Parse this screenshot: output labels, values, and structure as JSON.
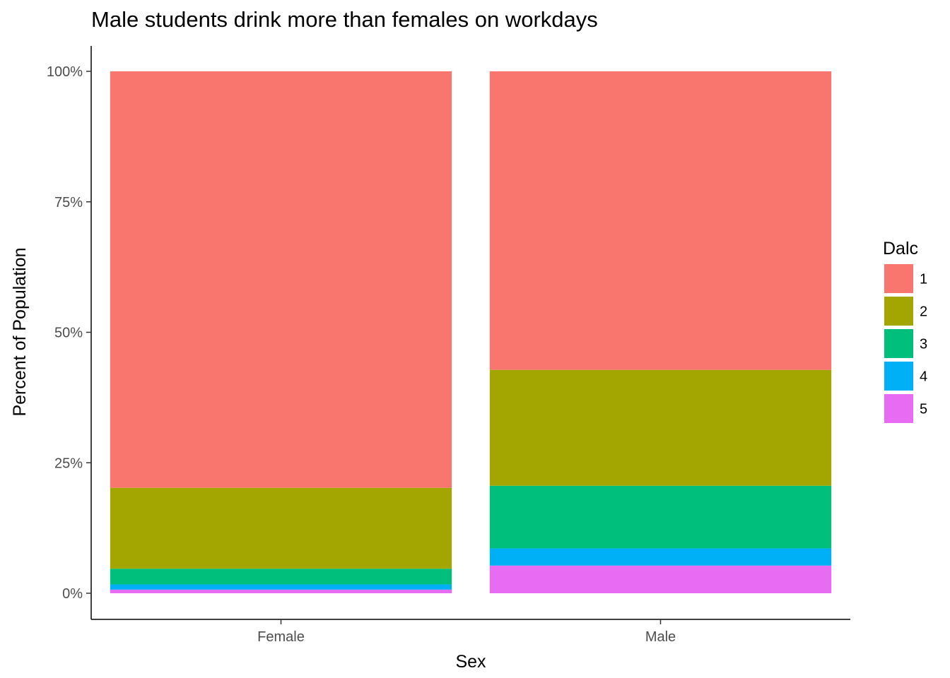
{
  "chart_data": {
    "type": "bar",
    "stacked": true,
    "title": "Male students drink more than females on workdays",
    "xlabel": "Sex",
    "ylabel": "Percent of Population",
    "categories": [
      "Female",
      "Male"
    ],
    "ylim": [
      0,
      1
    ],
    "yticks": [
      0,
      0.25,
      0.5,
      0.75,
      1.0
    ],
    "ytick_labels": [
      "0%",
      "25%",
      "50%",
      "75%",
      "100%"
    ],
    "legend": {
      "title": "Dalc",
      "position": "right"
    },
    "grid": false,
    "series": [
      {
        "name": "1",
        "color": "#F8766D",
        "values": [
          0.798,
          0.572
        ]
      },
      {
        "name": "2",
        "color": "#A3A500",
        "values": [
          0.155,
          0.222
        ]
      },
      {
        "name": "3",
        "color": "#00BF7D",
        "values": [
          0.03,
          0.12
        ]
      },
      {
        "name": "4",
        "color": "#00B0F6",
        "values": [
          0.01,
          0.033
        ]
      },
      {
        "name": "5",
        "color": "#E76BF3",
        "values": [
          0.007,
          0.053
        ]
      }
    ]
  }
}
